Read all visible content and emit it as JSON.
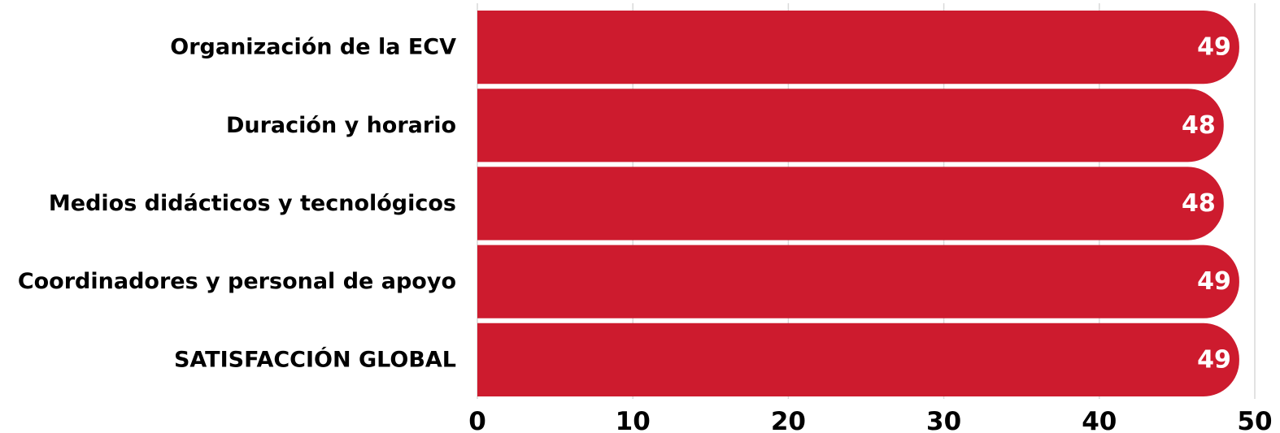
{
  "chart_data": {
    "type": "bar",
    "orientation": "horizontal",
    "categories": [
      "Organización de la ECV",
      "Duración y horario",
      "Medios didácticos y tecnológicos",
      "Coordinadores y personal de apoyo",
      "SATISFACCIÓN GLOBAL"
    ],
    "values": [
      49,
      48,
      48,
      49,
      49
    ],
    "value_labels": [
      "49",
      "48",
      "48",
      "49",
      "49"
    ],
    "xlim": [
      0,
      50
    ],
    "x_ticks": [
      0,
      10,
      20,
      30,
      40,
      50
    ],
    "x_tick_labels": [
      "0",
      "10",
      "20",
      "30",
      "40",
      "50"
    ],
    "title": "",
    "xlabel": "",
    "ylabel": "",
    "grid": "vertical",
    "legend": "none",
    "colors": {
      "bar": "#cd1b2e",
      "grid": "#d9d9d9",
      "value_text": "#ffffff",
      "label_text": "#000000"
    }
  }
}
